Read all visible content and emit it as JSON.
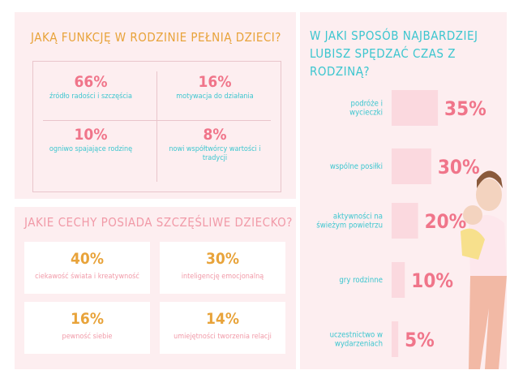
{
  "functions": {
    "title": "JAKĄ FUNKCJĘ W RODZINIE PEŁNIĄ DZIECI?",
    "items": [
      {
        "value": "66%",
        "label": "źródło radości i szczęścia"
      },
      {
        "value": "16%",
        "label": "motywacja do działania"
      },
      {
        "value": "10%",
        "label": "ogniwo spajające rodzinę"
      },
      {
        "value": "8%",
        "label": "nowi współtwórcy wartości i tradycji"
      }
    ]
  },
  "traits": {
    "title": "JAKIE CECHY POSIADA SZCZĘŚLIWE DZIECKO?",
    "items": [
      {
        "value": "40%",
        "label": "ciekawość świata i kreatywność"
      },
      {
        "value": "30%",
        "label": "inteligencję emocjonalną"
      },
      {
        "value": "16%",
        "label": "pewność siebie"
      },
      {
        "value": "14%",
        "label": "umiejętności tworzenia relacji"
      }
    ]
  },
  "chart_data": {
    "type": "bar",
    "title": "W JAKI SPOSÓB NAJBARDZIEJ LUBISZ SPĘDZAĆ CZAS Z RODZINĄ?",
    "categories": [
      "podróże i wycieczki",
      "wspólne posiłki",
      "aktywności na świeżym powietrzu",
      "gry rodzinne",
      "uczestnictwo w wydarzeniach"
    ],
    "values": [
      35,
      30,
      20,
      10,
      5
    ],
    "value_labels": [
      "35%",
      "30%",
      "20%",
      "10%",
      "5%"
    ],
    "color": "#fbd9df"
  }
}
